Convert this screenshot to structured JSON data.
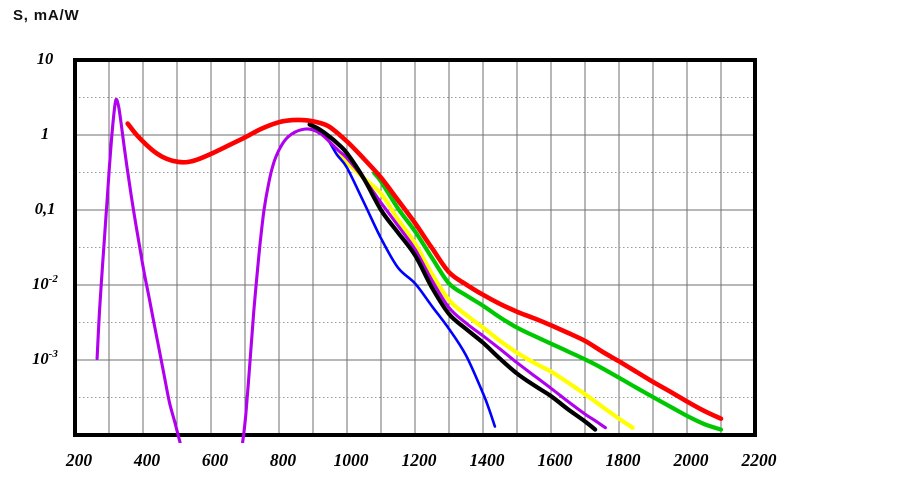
{
  "title": "S, mA/W",
  "chart_data": {
    "type": "line",
    "title": "S, mA/W",
    "ylabel": "S, mA/W",
    "xlabel": "",
    "legend": false,
    "grid": true,
    "x_axis": {
      "min": 200,
      "max": 2200,
      "tick_step": 200,
      "ticks": [
        200,
        400,
        600,
        800,
        1000,
        1200,
        1400,
        1600,
        1800,
        2000,
        2200
      ],
      "gridline_step": 100
    },
    "y_axis": {
      "scale": "log",
      "min": 0.0001,
      "max": 10,
      "gridlines_per_decade": 2,
      "ticks": [
        {
          "text": "10",
          "value": 10
        },
        {
          "text": "1",
          "value": 1
        },
        {
          "text": "0,1",
          "value": 0.1
        },
        {
          "text": "10",
          "exp": "-2",
          "value": 0.01
        },
        {
          "text": "10",
          "exp": "-3",
          "value": 0.001
        }
      ]
    },
    "series": [
      {
        "name": "yellow-curve",
        "color": "#ffff00",
        "width": 4.2,
        "points": [
          [
            980,
            0.54
          ],
          [
            1000,
            0.43
          ],
          [
            1050,
            0.265
          ],
          [
            1100,
            0.165
          ],
          [
            1150,
            0.075
          ],
          [
            1200,
            0.036
          ],
          [
            1250,
            0.014
          ],
          [
            1300,
            0.0063
          ],
          [
            1350,
            0.004
          ],
          [
            1400,
            0.0027
          ],
          [
            1450,
            0.0018
          ],
          [
            1500,
            0.00125
          ],
          [
            1550,
            0.00092
          ],
          [
            1600,
            0.0007
          ],
          [
            1650,
            0.0005
          ],
          [
            1700,
            0.00035
          ],
          [
            1750,
            0.00024
          ],
          [
            1800,
            0.000165
          ],
          [
            1840,
            0.000125
          ]
        ]
      },
      {
        "name": "green-curve",
        "color": "#00c800",
        "width": 4.2,
        "points": [
          [
            1080,
            0.31
          ],
          [
            1100,
            0.24
          ],
          [
            1150,
            0.105
          ],
          [
            1200,
            0.052
          ],
          [
            1250,
            0.023
          ],
          [
            1300,
            0.0105
          ],
          [
            1350,
            0.0073
          ],
          [
            1400,
            0.0053
          ],
          [
            1450,
            0.0037
          ],
          [
            1500,
            0.0027
          ],
          [
            1550,
            0.0021
          ],
          [
            1600,
            0.00165
          ],
          [
            1650,
            0.0013
          ],
          [
            1700,
            0.00102
          ],
          [
            1750,
            0.00078
          ],
          [
            1800,
            0.00058
          ],
          [
            1850,
            0.00043
          ],
          [
            1900,
            0.00032
          ],
          [
            1950,
            0.00024
          ],
          [
            2000,
            0.00018
          ],
          [
            2050,
            0.00014
          ],
          [
            2100,
            0.000118
          ]
        ]
      },
      {
        "name": "blue-curve",
        "color": "#0000ff",
        "width": 2.6,
        "points": [
          [
            920,
            1.15
          ],
          [
            945,
            0.85
          ],
          [
            970,
            0.55
          ],
          [
            1000,
            0.365
          ],
          [
            1050,
            0.125
          ],
          [
            1100,
            0.042
          ],
          [
            1150,
            0.017
          ],
          [
            1200,
            0.0105
          ],
          [
            1250,
            0.0052
          ],
          [
            1300,
            0.0026
          ],
          [
            1350,
            0.00115
          ],
          [
            1400,
            0.00036
          ],
          [
            1418,
            0.00022
          ],
          [
            1435,
            0.00013
          ]
        ]
      },
      {
        "name": "violet-curve",
        "color": "#b000ee",
        "width": 3.1,
        "points": [
          [
            265,
            0.00105
          ],
          [
            272,
            0.0045
          ],
          [
            281,
            0.018
          ],
          [
            291,
            0.08
          ],
          [
            301,
            0.36
          ],
          [
            310,
            1.2
          ],
          [
            318,
            2.6
          ],
          [
            323,
            2.95
          ],
          [
            329,
            2.3
          ],
          [
            336,
            1.4
          ],
          [
            345,
            0.68
          ],
          [
            357,
            0.28
          ],
          [
            372,
            0.1
          ],
          [
            388,
            0.037
          ],
          [
            403,
            0.015
          ],
          [
            418,
            0.0068
          ],
          [
            433,
            0.003
          ],
          [
            448,
            0.00135
          ],
          [
            463,
            0.0006
          ],
          [
            478,
            0.00027
          ],
          [
            495,
            0.00014
          ],
          [
            512,
            7e-05
          ],
          [
            530,
            3.3e-05
          ],
          [
            552,
            1.8e-05
          ],
          [
            580,
            1.2e-05
          ],
          [
            610,
            1e-05
          ],
          [
            640,
            1.3e-05
          ],
          [
            663,
            2e-05
          ],
          [
            680,
            3.8e-05
          ],
          [
            693,
            8e-05
          ],
          [
            702,
            0.00018
          ],
          [
            710,
            0.0005
          ],
          [
            718,
            0.0015
          ],
          [
            726,
            0.0045
          ],
          [
            735,
            0.013
          ],
          [
            745,
            0.038
          ],
          [
            756,
            0.1
          ],
          [
            769,
            0.22
          ],
          [
            784,
            0.42
          ],
          [
            800,
            0.63
          ],
          [
            820,
            0.88
          ],
          [
            845,
            1.08
          ],
          [
            875,
            1.2
          ],
          [
            900,
            1.17
          ],
          [
            925,
            1.02
          ],
          [
            950,
            0.8
          ],
          [
            975,
            0.62
          ],
          [
            1000,
            0.49
          ],
          [
            1050,
            0.26
          ],
          [
            1100,
            0.125
          ],
          [
            1150,
            0.062
          ],
          [
            1200,
            0.03
          ],
          [
            1250,
            0.0115
          ],
          [
            1300,
            0.005
          ],
          [
            1350,
            0.0031
          ],
          [
            1400,
            0.0021
          ],
          [
            1450,
            0.0014
          ],
          [
            1500,
            0.00092
          ],
          [
            1550,
            0.00062
          ],
          [
            1600,
            0.00042
          ],
          [
            1650,
            0.00028
          ],
          [
            1700,
            0.00019
          ],
          [
            1730,
            0.000155
          ],
          [
            1760,
            0.000125
          ]
        ]
      },
      {
        "name": "black-curve",
        "color": "#000000",
        "width": 4.2,
        "points": [
          [
            890,
            1.38
          ],
          [
            915,
            1.22
          ],
          [
            945,
            0.98
          ],
          [
            975,
            0.75
          ],
          [
            1000,
            0.57
          ],
          [
            1050,
            0.26
          ],
          [
            1100,
            0.1
          ],
          [
            1150,
            0.05
          ],
          [
            1200,
            0.025
          ],
          [
            1250,
            0.0092
          ],
          [
            1300,
            0.0041
          ],
          [
            1350,
            0.0026
          ],
          [
            1400,
            0.0017
          ],
          [
            1450,
            0.00104
          ],
          [
            1500,
            0.00066
          ],
          [
            1550,
            0.00046
          ],
          [
            1600,
            0.00033
          ],
          [
            1650,
            0.00022
          ],
          [
            1700,
            0.000152
          ],
          [
            1730,
            0.000118
          ]
        ]
      },
      {
        "name": "red-curve",
        "color": "#ff0000",
        "width": 4.6,
        "points": [
          [
            355,
            1.42
          ],
          [
            380,
            1.02
          ],
          [
            410,
            0.74
          ],
          [
            440,
            0.57
          ],
          [
            470,
            0.48
          ],
          [
            500,
            0.44
          ],
          [
            530,
            0.435
          ],
          [
            560,
            0.47
          ],
          [
            600,
            0.56
          ],
          [
            650,
            0.72
          ],
          [
            700,
            0.93
          ],
          [
            750,
            1.22
          ],
          [
            800,
            1.48
          ],
          [
            840,
            1.58
          ],
          [
            880,
            1.57
          ],
          [
            920,
            1.45
          ],
          [
            950,
            1.27
          ],
          [
            1000,
            0.82
          ],
          [
            1050,
            0.48
          ],
          [
            1100,
            0.27
          ],
          [
            1150,
            0.135
          ],
          [
            1200,
            0.067
          ],
          [
            1250,
            0.031
          ],
          [
            1300,
            0.0148
          ],
          [
            1350,
            0.0102
          ],
          [
            1400,
            0.0074
          ],
          [
            1450,
            0.0056
          ],
          [
            1500,
            0.0044
          ],
          [
            1550,
            0.0036
          ],
          [
            1600,
            0.0029
          ],
          [
            1650,
            0.0023
          ],
          [
            1700,
            0.0018
          ],
          [
            1750,
            0.0013
          ],
          [
            1800,
            0.00096
          ],
          [
            1850,
            0.0007
          ],
          [
            1900,
            0.00051
          ],
          [
            1950,
            0.00038
          ],
          [
            2000,
            0.00028
          ],
          [
            2050,
            0.00021
          ],
          [
            2100,
            0.000165
          ]
        ]
      }
    ],
    "colors": {
      "grid_major": "#6f6f6f",
      "grid_minor": "#9a9a9a",
      "border": "#000000",
      "background": "#ffffff"
    }
  }
}
